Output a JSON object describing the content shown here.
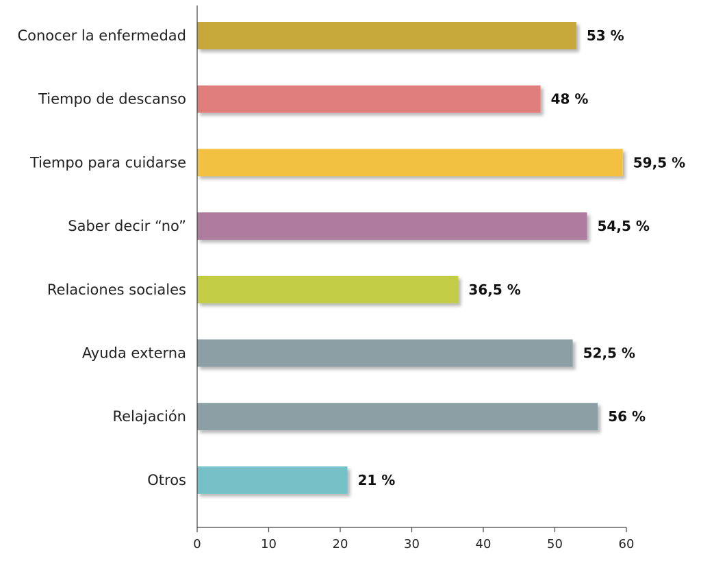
{
  "chart_data": {
    "type": "bar",
    "orientation": "horizontal",
    "title": "",
    "xlabel": "",
    "ylabel": "",
    "categories": [
      "Conocer la enfermedad",
      "Tiempo de descanso",
      "Tiempo para cuidarse",
      "Saber decir “no”",
      "Relaciones sociales",
      "Ayuda externa",
      "Relajación",
      "Otros"
    ],
    "values": [
      53,
      48,
      59.5,
      54.5,
      36.5,
      52.5,
      56,
      21
    ],
    "value_labels": [
      "53 %",
      "48 %",
      "59,5 %",
      "54,5 %",
      "36,5 %",
      "52,5 %",
      "56 %",
      "21 %"
    ],
    "colors": [
      "#c6a83a",
      "#e07e7c",
      "#f2c142",
      "#ad7b9e",
      "#c2cd45",
      "#8c9fa4",
      "#8c9fa4",
      "#76c1c7"
    ],
    "xlim": [
      0,
      60
    ],
    "xticks": [
      0,
      10,
      20,
      30,
      40,
      50,
      60
    ],
    "grid": false,
    "legend": "none"
  }
}
